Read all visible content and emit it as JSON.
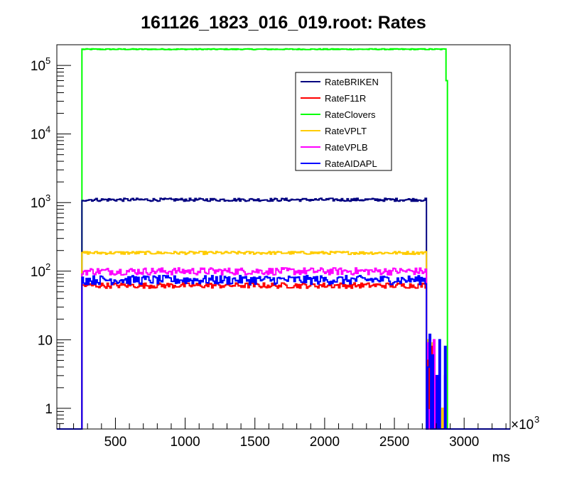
{
  "chart_data": {
    "type": "line",
    "title": "161126_1823_016_019.root: Rates",
    "xlabel": "ms",
    "x_multiplier": "×10",
    "x_multiplier_exp": "3",
    "ylabel": "",
    "y_scale": "log",
    "xlim": [
      80,
      3330
    ],
    "ylim": [
      0.5,
      200000
    ],
    "x_ticks": [
      500,
      1000,
      1500,
      2000,
      2500,
      3000
    ],
    "x_tick_labels": [
      "500",
      "1000",
      "1500",
      "2000",
      "2500",
      "3000"
    ],
    "y_ticks": [
      {
        "value": 1,
        "base": "1",
        "exp": ""
      },
      {
        "value": 10,
        "base": "10",
        "exp": ""
      },
      {
        "value": 100,
        "base": "10",
        "exp": "2"
      },
      {
        "value": 1000,
        "base": "10",
        "exp": "3"
      },
      {
        "value": 10000,
        "base": "10",
        "exp": "4"
      },
      {
        "value": 100000,
        "base": "10",
        "exp": "5"
      }
    ],
    "legend_position": "top-center",
    "series": [
      {
        "name": "RateBRIKEN",
        "color": "#000080",
        "start": 260,
        "end": 2730,
        "level": 1100,
        "noise": 0.05,
        "tail": []
      },
      {
        "name": "RateF11R",
        "color": "#ff0000",
        "start": 260,
        "end": 2730,
        "level": 62,
        "noise": 0.09,
        "tail": [
          [
            2740,
            5
          ],
          [
            2750,
            1
          ],
          [
            2760,
            8
          ],
          [
            2770,
            4
          ]
        ]
      },
      {
        "name": "RateClovers",
        "color": "#00ff00",
        "start": 260,
        "end": 2870,
        "level": 172000,
        "noise": 0.015,
        "tail": [
          [
            2870,
            60000
          ]
        ]
      },
      {
        "name": "RateVPLT",
        "color": "#ffcc00",
        "start": 260,
        "end": 2730,
        "level": 185,
        "noise": 0.05,
        "tail": [
          [
            2730,
            10
          ],
          [
            2750,
            3
          ],
          [
            2770,
            9
          ],
          [
            2840,
            1
          ]
        ]
      },
      {
        "name": "RateVPLB",
        "color": "#ff00ff",
        "start": 260,
        "end": 2730,
        "level": 100,
        "noise": 0.12,
        "tail": [
          [
            2740,
            9
          ],
          [
            2760,
            2
          ],
          [
            2780,
            10
          ],
          [
            2860,
            3
          ]
        ]
      },
      {
        "name": "RateAIDAPL",
        "color": "#0000ff",
        "start": 260,
        "end": 2730,
        "level": 75,
        "noise": 0.15,
        "tail": [
          [
            2740,
            4
          ],
          [
            2750,
            12
          ],
          [
            2770,
            6
          ],
          [
            2800,
            3
          ],
          [
            2820,
            10
          ],
          [
            2860,
            8
          ]
        ]
      }
    ]
  }
}
